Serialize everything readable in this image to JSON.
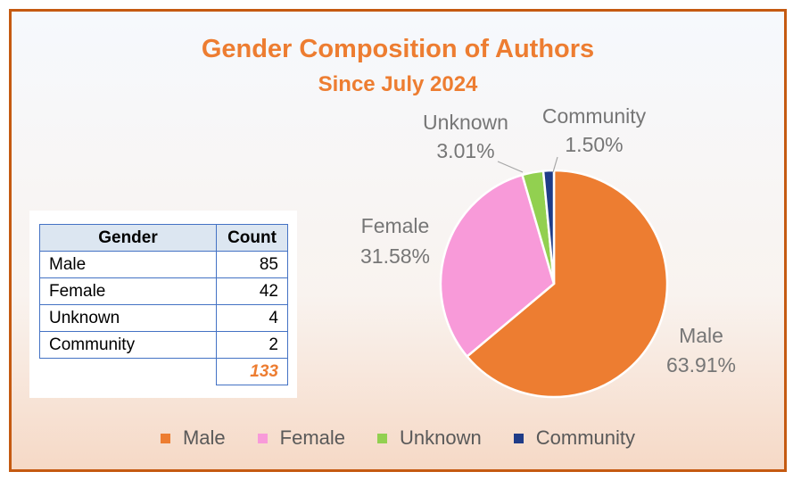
{
  "chart_data": {
    "type": "pie",
    "title": "Gender Composition of Authors",
    "subtitle": "Since July 2024",
    "categories": [
      "Male",
      "Female",
      "Unknown",
      "Community"
    ],
    "values": [
      85,
      42,
      4,
      2
    ],
    "percent_labels": [
      "63.91%",
      "31.58%",
      "3.01%",
      "1.50%"
    ],
    "colors": [
      "#ed7d31",
      "#f89ad9",
      "#92d050",
      "#1f3c88"
    ],
    "legend_position": "bottom"
  },
  "table": {
    "headers": [
      "Gender",
      "Count"
    ],
    "rows": [
      {
        "gender": "Male",
        "count": "85"
      },
      {
        "gender": "Female",
        "count": "42"
      },
      {
        "gender": "Unknown",
        "count": "4"
      },
      {
        "gender": "Community",
        "count": "2"
      }
    ],
    "total": "133"
  }
}
